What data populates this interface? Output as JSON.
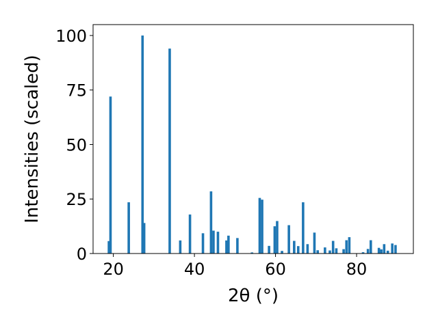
{
  "chart_data": {
    "type": "bar",
    "title": "",
    "xlabel": "2θ (°)",
    "ylabel": "Intensities (scaled)",
    "xlim": [
      15,
      94
    ],
    "ylim": [
      0,
      105
    ],
    "xticks": [
      20,
      40,
      60,
      80
    ],
    "yticks": [
      0,
      25,
      50,
      75,
      100
    ],
    "grid": false,
    "bar_color": "#1f77b4",
    "x": [
      18.9,
      19.3,
      23.8,
      27.2,
      27.6,
      33.9,
      36.5,
      38.9,
      42.1,
      44.1,
      44.7,
      45.8,
      47.9,
      48.4,
      50.6,
      54.2,
      56.1,
      56.7,
      58.4,
      59.8,
      60.4,
      61.6,
      63.3,
      64.6,
      65.6,
      66.8,
      67.9,
      69.6,
      70.4,
      72.2,
      73.4,
      74.2,
      75.0,
      76.8,
      77.5,
      78.2,
      81.6,
      82.8,
      83.5,
      85.5,
      86.1,
      86.8,
      87.7,
      88.8,
      89.6
    ],
    "values": [
      5.7,
      72.0,
      23.5,
      100.0,
      14.0,
      94.0,
      6.0,
      17.9,
      9.3,
      28.5,
      10.5,
      10.0,
      6.0,
      8.2,
      7.1,
      0.5,
      25.5,
      24.7,
      3.5,
      12.5,
      14.9,
      1.2,
      13.0,
      5.8,
      3.4,
      23.5,
      4.3,
      9.6,
      1.5,
      2.8,
      1.4,
      5.8,
      2.4,
      2.0,
      6.1,
      7.5,
      0.6,
      2.1,
      6.1,
      2.6,
      1.9,
      4.3,
      1.3,
      4.6,
      3.9
    ]
  }
}
